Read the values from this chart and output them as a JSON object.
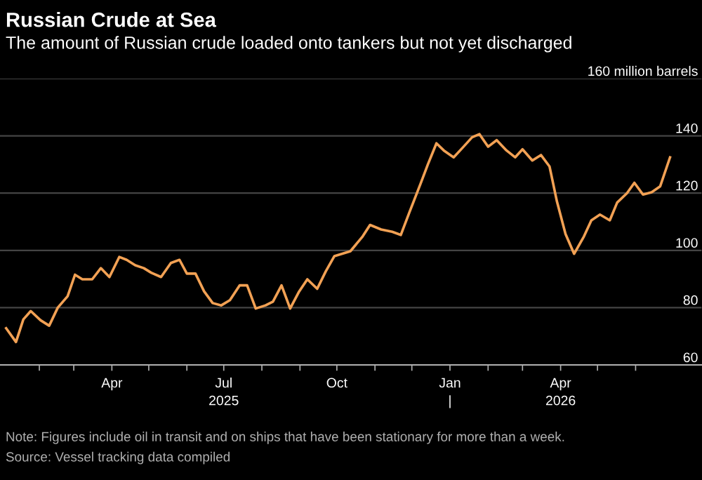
{
  "chart_data": {
    "type": "line",
    "title": "Russian Crude at Sea",
    "subtitle": "The amount of Russian crude loaded onto tankers but not yet discharged",
    "x": [
      "2025-01-05",
      "2025-01-13",
      "2025-01-19",
      "2025-01-25",
      "2025-02-02",
      "2025-02-09",
      "2025-02-16",
      "2025-02-24",
      "2025-03-02",
      "2025-03-08",
      "2025-03-16",
      "2025-03-23",
      "2025-03-30",
      "2025-04-07",
      "2025-04-13",
      "2025-04-20",
      "2025-04-27",
      "2025-05-03",
      "2025-05-11",
      "2025-05-19",
      "2025-05-26",
      "2025-06-01",
      "2025-06-08",
      "2025-06-15",
      "2025-06-22",
      "2025-06-29",
      "2025-07-06",
      "2025-07-14",
      "2025-07-20",
      "2025-07-27",
      "2025-08-04",
      "2025-08-10",
      "2025-08-17",
      "2025-08-24",
      "2025-08-31",
      "2025-09-07",
      "2025-09-15",
      "2025-09-22",
      "2025-09-29",
      "2025-10-12",
      "2025-10-22",
      "2025-10-28",
      "2025-11-06",
      "2025-11-15",
      "2025-11-22",
      "2025-11-29",
      "2025-12-08",
      "2025-12-14",
      "2025-12-21",
      "2025-12-27",
      "2026-01-04",
      "2026-01-12",
      "2026-01-19",
      "2026-01-25",
      "2026-02-01",
      "2026-02-08",
      "2026-02-16",
      "2026-02-23",
      "2026-03-01",
      "2026-03-09",
      "2026-03-16",
      "2026-03-23",
      "2026-03-29",
      "2026-04-05",
      "2026-04-12",
      "2026-04-20",
      "2026-04-26",
      "2026-05-03",
      "2026-05-11",
      "2026-05-17",
      "2026-05-25",
      "2026-05-31",
      "2026-06-07",
      "2026-06-14",
      "2026-06-21",
      "2026-06-29"
    ],
    "series": [
      {
        "color": "#f2a154",
        "values": [
          72.8,
          68,
          75.9,
          78.8,
          75.6,
          73.7,
          80,
          84,
          91.5,
          89.9,
          89.9,
          93.8,
          90.7,
          97.7,
          96.7,
          94.8,
          93.8,
          92.2,
          90.7,
          95.6,
          96.7,
          91.9,
          91.9,
          85.7,
          81.6,
          80.8,
          82.6,
          87.8,
          87.8,
          79.7,
          80.8,
          82.1,
          87.8,
          79.7,
          85.4,
          89.9,
          86.6,
          92.7,
          98,
          99.7,
          104.9,
          108.9,
          107.3,
          106.5,
          105.4,
          113.3,
          123.2,
          130,
          137.4,
          134.9,
          132.5,
          136.2,
          139.5,
          140.6,
          136.2,
          138.5,
          134.9,
          132.5,
          135.3,
          131.4,
          133.3,
          129.3,
          117.1,
          105.7,
          98.8,
          104.9,
          110.5,
          112.5,
          110.5,
          116.7,
          120,
          123.6,
          119.5,
          120.3,
          122.4,
          132.5
        ]
      }
    ],
    "xlim": [
      "2024-12-31",
      "2026-07-25"
    ],
    "xticks": [
      {
        "value": "2025-02-01",
        "label": null
      },
      {
        "value": "2025-03-01",
        "label": null
      },
      {
        "value": "2025-04-01",
        "label": "Apr"
      },
      {
        "value": "2025-05-01",
        "label": null
      },
      {
        "value": "2025-06-01",
        "label": null
      },
      {
        "value": "2025-07-01",
        "label": "Jul\n2025"
      },
      {
        "value": "2025-08-01",
        "label": null
      },
      {
        "value": "2025-09-01",
        "label": null
      },
      {
        "value": "2025-10-01",
        "label": "Oct"
      },
      {
        "value": "2025-11-01",
        "label": null
      },
      {
        "value": "2025-12-01",
        "label": null
      },
      {
        "value": "2026-01-01",
        "label": "Jan\n|"
      },
      {
        "value": "2026-02-01",
        "label": null
      },
      {
        "value": "2026-03-01",
        "label": null
      },
      {
        "value": "2026-04-01",
        "label": "Apr\n2026"
      },
      {
        "value": "2026-05-01",
        "label": null
      },
      {
        "value": "2026-06-01",
        "label": null
      }
    ],
    "ylim": [
      60,
      160
    ],
    "yticks": [
      60,
      80,
      100,
      120,
      140,
      {
        "value": 160,
        "label": "160 million barrels"
      }
    ],
    "grid": "y",
    "line_style": "solid",
    "marker": "none",
    "annotations": [
      "Note: Figures include oil in transit and on ships that have been stationary for more than a week.",
      "Source: Vessel tracking data compiled"
    ]
  }
}
